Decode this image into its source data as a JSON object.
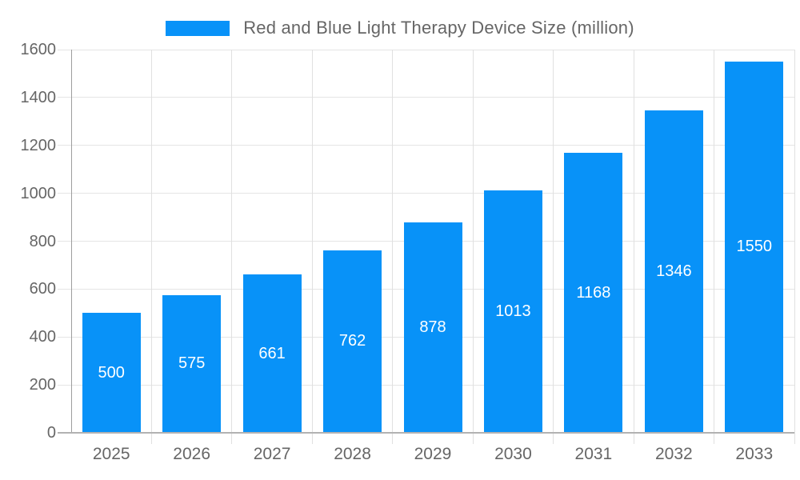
{
  "legend": {
    "label": "Red and Blue Light Therapy Device Size (million)"
  },
  "chart_data": {
    "type": "bar",
    "title": "Red and Blue Light Therapy Device Size (million)",
    "series_name": "Red and Blue Light Therapy Device Size (million)",
    "categories": [
      "2025",
      "2026",
      "2027",
      "2028",
      "2029",
      "2030",
      "2031",
      "2032",
      "2033"
    ],
    "values": [
      500,
      575,
      661,
      762,
      878,
      1013,
      1168,
      1346,
      1550
    ],
    "xlabel": "",
    "ylabel": "",
    "ylim": [
      0,
      1600
    ],
    "yticks": [
      0,
      200,
      400,
      600,
      800,
      1000,
      1200,
      1400,
      1600
    ],
    "grid": true,
    "legend_position": "top-center",
    "bar_color": "#0892f8",
    "value_label_color": "#ffffff",
    "axis_label_color": "#666666",
    "grid_color": "#e4e4e4"
  }
}
